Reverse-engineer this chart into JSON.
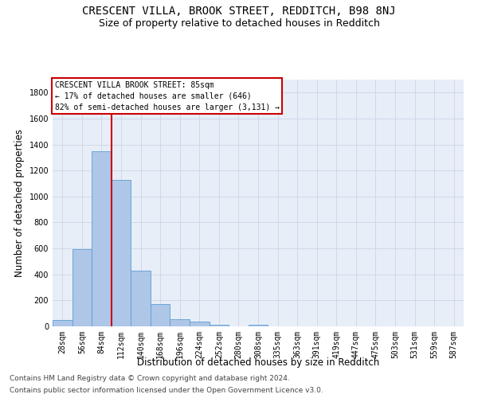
{
  "title1": "CRESCENT VILLA, BROOK STREET, REDDITCH, B98 8NJ",
  "title2": "Size of property relative to detached houses in Redditch",
  "xlabel": "Distribution of detached houses by size in Redditch",
  "ylabel": "Number of detached properties",
  "footer1": "Contains HM Land Registry data © Crown copyright and database right 2024.",
  "footer2": "Contains public sector information licensed under the Open Government Licence v3.0.",
  "bin_labels": [
    "28sqm",
    "56sqm",
    "84sqm",
    "112sqm",
    "140sqm",
    "168sqm",
    "196sqm",
    "224sqm",
    "252sqm",
    "280sqm",
    "308sqm",
    "335sqm",
    "363sqm",
    "391sqm",
    "419sqm",
    "447sqm",
    "475sqm",
    "503sqm",
    "531sqm",
    "559sqm",
    "587sqm"
  ],
  "bar_heights": [
    50,
    595,
    1350,
    1130,
    430,
    170,
    58,
    35,
    15,
    0,
    15,
    0,
    0,
    0,
    0,
    0,
    0,
    0,
    0,
    0,
    0
  ],
  "bar_color": "#aec6e8",
  "bar_edge_color": "#5a9fd4",
  "grid_color": "#d0d8e8",
  "bg_color": "#e8eef8",
  "vline_color": "#cc0000",
  "annotation_box_color": "#cc0000",
  "ylim": [
    0,
    1900
  ],
  "yticks": [
    0,
    200,
    400,
    600,
    800,
    1000,
    1200,
    1400,
    1600,
    1800
  ],
  "title1_fontsize": 10,
  "title2_fontsize": 9,
  "xlabel_fontsize": 8.5,
  "ylabel_fontsize": 8.5,
  "tick_fontsize": 7,
  "annotation_fontsize": 7,
  "footer_fontsize": 6.5
}
